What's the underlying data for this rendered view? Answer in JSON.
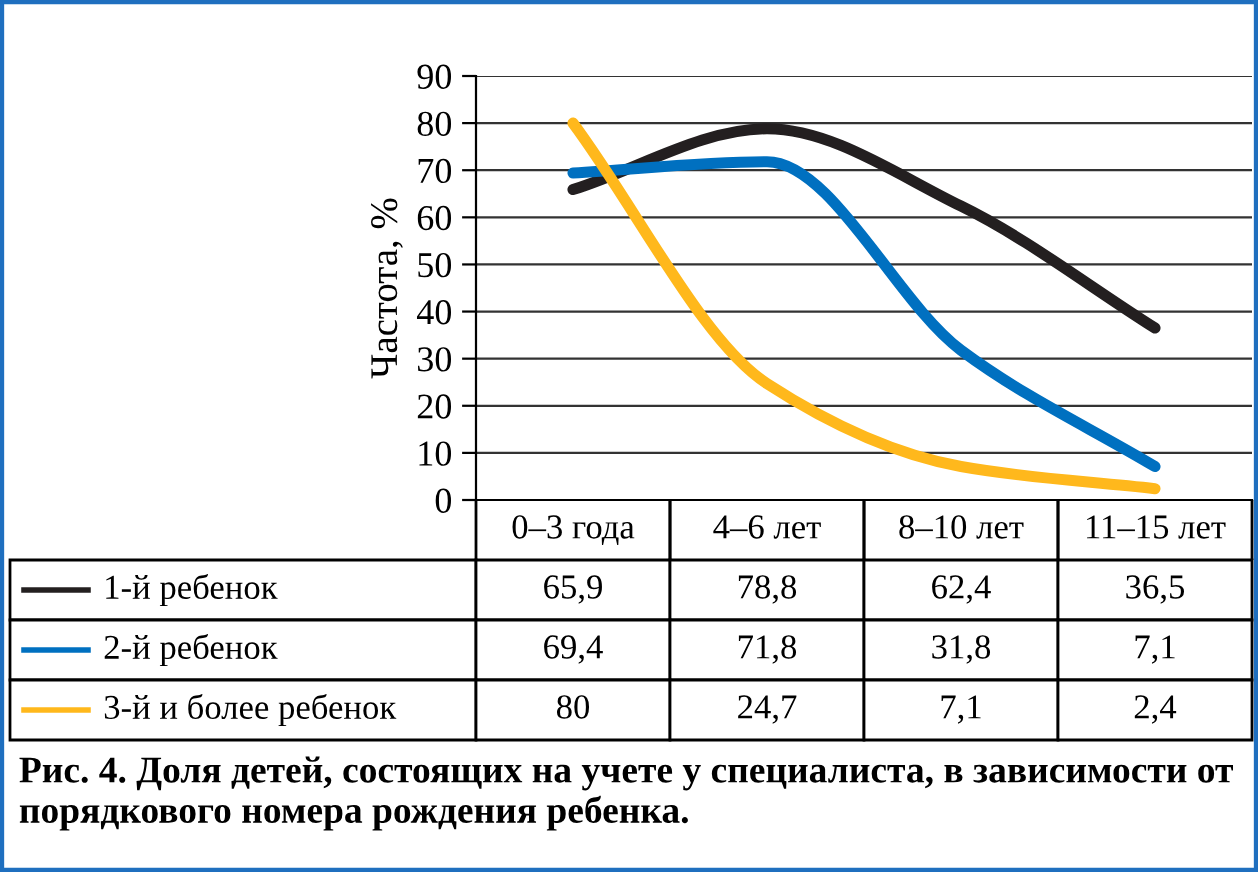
{
  "chart_data": {
    "type": "line",
    "title": "Рис. 4. Доля детей, состоящих на учете у специалиста, в зависимости от порядкового номера рождения ребенка.",
    "ylabel": "Частота, %",
    "categories": [
      "0–3 года",
      "4–6 лет",
      "8–10 лет",
      "11–15 лет"
    ],
    "series": [
      {
        "name": "1-й ребенок",
        "color": "#231f20",
        "values": [
          65.9,
          78.8,
          62.4,
          36.5
        ],
        "value_labels": [
          "65,9",
          "78,8",
          "62,4",
          "36,5"
        ]
      },
      {
        "name": "2-й ребенок",
        "color": "#0070c0",
        "values": [
          69.4,
          71.8,
          31.8,
          7.1
        ],
        "value_labels": [
          "69,4",
          "71,8",
          "31,8",
          "7,1"
        ]
      },
      {
        "name": "3-й и более ребенок",
        "color": "#ffb81c",
        "values": [
          80,
          24.7,
          7.1,
          2.4
        ],
        "value_labels": [
          "80",
          "24,7",
          "7,1",
          "2,4"
        ]
      }
    ],
    "ylim": [
      0,
      90
    ],
    "yticks": [
      0,
      10,
      20,
      30,
      40,
      50,
      60,
      70,
      80,
      90
    ],
    "grid": "y",
    "marker": "none",
    "line_style": "solid",
    "legend": "bottom"
  }
}
